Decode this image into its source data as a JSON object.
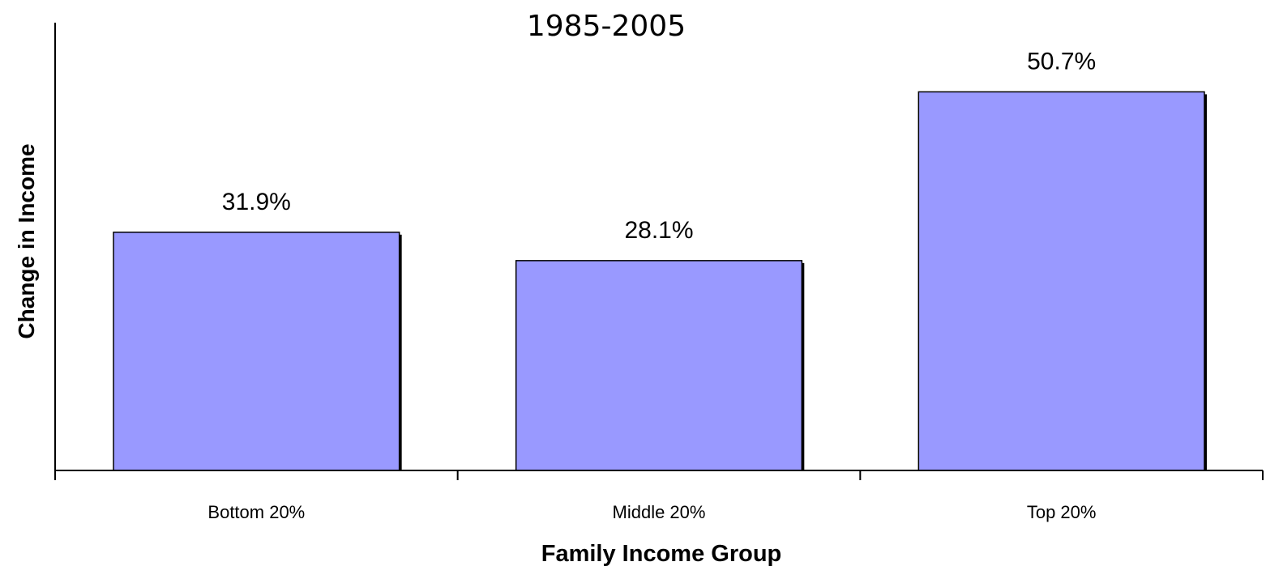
{
  "chart_data": {
    "type": "bar",
    "title": "1985-2005",
    "xlabel": "Family Income Group",
    "ylabel": "Change in Income",
    "categories": [
      "Bottom 20%",
      "Middle 20%",
      "Top 20%"
    ],
    "values": [
      31.9,
      28.1,
      50.7
    ],
    "data_labels": [
      "31.9%",
      "28.1%",
      "50.7%"
    ],
    "ylim": [
      0,
      63
    ],
    "bar_color": "#9999ff",
    "grid": false,
    "legend": "none"
  }
}
